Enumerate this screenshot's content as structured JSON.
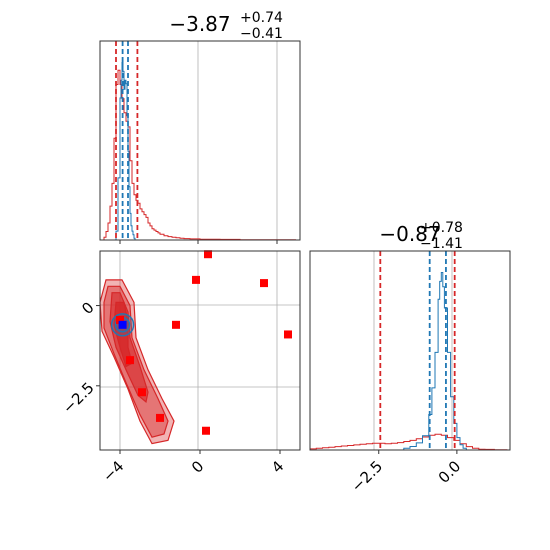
{
  "colors": {
    "red": "#d62728",
    "blue": "#1f77b4",
    "grid": "#b0b0b0",
    "square": "#ff0000",
    "marker": "#0000ff"
  },
  "chart_data": [
    {
      "type": "histogram",
      "title": "−3.87",
      "title_sup": "+0.74",
      "title_sub": "−0.41",
      "xlim": [
        -5,
        5
      ],
      "quantile_lines_red": [
        -4.2,
        -3.13
      ],
      "quantile_lines_blue": [
        -3.87,
        -3.6
      ],
      "series_red_histogram": [
        [
          -5.0,
          0
        ],
        [
          -4.9,
          0
        ],
        [
          -4.8,
          0.01
        ],
        [
          -4.7,
          0.03
        ],
        [
          -4.6,
          0.06
        ],
        [
          -4.5,
          0.12
        ],
        [
          -4.4,
          0.2
        ],
        [
          -4.3,
          0.36
        ],
        [
          -4.2,
          0.55
        ],
        [
          -4.1,
          0.6
        ],
        [
          -4.0,
          0.55
        ],
        [
          -3.9,
          0.5
        ],
        [
          -3.8,
          0.45
        ],
        [
          -3.7,
          0.42
        ],
        [
          -3.6,
          0.4
        ],
        [
          -3.5,
          0.28
        ],
        [
          -3.4,
          0.2
        ],
        [
          -3.3,
          0.16
        ],
        [
          -3.2,
          0.14
        ],
        [
          -3.1,
          0.13
        ],
        [
          -3.0,
          0.11
        ],
        [
          -2.9,
          0.1
        ],
        [
          -2.8,
          0.09
        ],
        [
          -2.7,
          0.08
        ],
        [
          -2.6,
          0.06
        ],
        [
          -2.5,
          0.05
        ],
        [
          -2.4,
          0.04
        ],
        [
          -2.3,
          0.035
        ],
        [
          -2.2,
          0.03
        ],
        [
          -2.1,
          0.025
        ],
        [
          -2.0,
          0.02
        ],
        [
          -1.8,
          0.015
        ],
        [
          -1.6,
          0.012
        ],
        [
          -1.4,
          0.01
        ],
        [
          -1.2,
          0.008
        ],
        [
          -1.0,
          0.006
        ],
        [
          -0.8,
          0.005
        ],
        [
          -0.5,
          0.004
        ],
        [
          0,
          0.003
        ],
        [
          1,
          0.002
        ],
        [
          2,
          0.001
        ],
        [
          4.8,
          0.001
        ]
      ],
      "series_blue_histogram": [
        [
          -4.3,
          0
        ],
        [
          -4.2,
          0.05
        ],
        [
          -4.1,
          0.35
        ],
        [
          -4.0,
          0.8
        ],
        [
          -3.95,
          0.9
        ],
        [
          -3.9,
          1.0
        ],
        [
          -3.85,
          0.95
        ],
        [
          -3.8,
          0.85
        ],
        [
          -3.75,
          0.9
        ],
        [
          -3.7,
          0.88
        ],
        [
          -3.65,
          0.7
        ],
        [
          -3.6,
          0.5
        ],
        [
          -3.55,
          0.3
        ],
        [
          -3.5,
          0.15
        ],
        [
          -3.45,
          0.08
        ],
        [
          -3.4,
          0.05
        ],
        [
          -3.35,
          0.03
        ],
        [
          -3.3,
          0.01
        ],
        [
          -3.25,
          0
        ]
      ]
    },
    {
      "type": "scatter",
      "xlim": [
        -5,
        5
      ],
      "ylim": [
        -4.5,
        1.7
      ],
      "xticks": [
        -4,
        0,
        4
      ],
      "xtick_labels": [
        "−4",
        "0",
        "4"
      ],
      "yticks": [
        0,
        -2.5
      ],
      "ytick_labels": [
        "0",
        "−2.5"
      ],
      "red_squares": [
        [
          0.4,
          1.6
        ],
        [
          -0.2,
          0.8
        ],
        [
          3.2,
          0.7
        ],
        [
          -1.2,
          -0.6
        ],
        [
          4.4,
          -0.9
        ],
        [
          -3.5,
          -1.7
        ],
        [
          -2.9,
          -2.7
        ],
        [
          -2.0,
          -3.5
        ],
        [
          0.3,
          -3.9
        ],
        [
          -4.0,
          -0.45
        ]
      ],
      "blue_marker": [
        -3.87,
        -0.6
      ],
      "red_contours": [
        [
          [
            -4.7,
            0.8
          ],
          [
            -3.9,
            0.8
          ],
          [
            -3.3,
            0.1
          ],
          [
            -3.2,
            -1.0
          ],
          [
            -2.6,
            -2.0
          ],
          [
            -1.9,
            -2.9
          ],
          [
            -1.3,
            -3.6
          ],
          [
            -1.6,
            -4.2
          ],
          [
            -2.4,
            -4.3
          ],
          [
            -3.0,
            -3.6
          ],
          [
            -3.6,
            -2.6
          ],
          [
            -4.3,
            -1.6
          ],
          [
            -4.9,
            -0.8
          ],
          [
            -5.0,
            0.1
          ]
        ],
        [
          [
            -4.6,
            0.6
          ],
          [
            -4.0,
            0.6
          ],
          [
            -3.5,
            0.0
          ],
          [
            -3.4,
            -1.0
          ],
          [
            -2.8,
            -2.0
          ],
          [
            -2.1,
            -2.9
          ],
          [
            -1.6,
            -3.6
          ],
          [
            -1.8,
            -4.0
          ],
          [
            -2.4,
            -4.1
          ],
          [
            -3.0,
            -3.4
          ],
          [
            -3.7,
            -2.4
          ],
          [
            -4.3,
            -1.5
          ],
          [
            -4.8,
            -0.7
          ],
          [
            -4.8,
            0.1
          ]
        ],
        [
          [
            -4.4,
            0.4
          ],
          [
            -4.0,
            0.4
          ],
          [
            -3.6,
            -0.2
          ],
          [
            -3.5,
            -1.0
          ],
          [
            -3.0,
            -1.9
          ],
          [
            -2.6,
            -2.7
          ],
          [
            -2.7,
            -3.0
          ],
          [
            -3.1,
            -2.8
          ],
          [
            -3.7,
            -2.0
          ],
          [
            -4.2,
            -1.3
          ],
          [
            -4.5,
            -0.5
          ]
        ],
        [
          [
            -4.2,
            0.1
          ],
          [
            -3.8,
            0.1
          ],
          [
            -3.6,
            -0.5
          ],
          [
            -3.6,
            -1.3
          ],
          [
            -3.4,
            -1.8
          ],
          [
            -3.7,
            -1.9
          ],
          [
            -4.0,
            -1.3
          ],
          [
            -4.3,
            -0.6
          ]
        ]
      ],
      "blue_contours": [
        {
          "center": [
            -3.87,
            -0.6
          ],
          "rx": 0.55,
          "ry": 0.55
        },
        {
          "center": [
            -3.87,
            -0.6
          ],
          "rx": 0.35,
          "ry": 0.35
        }
      ]
    },
    {
      "type": "histogram",
      "title": "−0.87",
      "title_sup": "+0.78",
      "title_sub": "−1.41",
      "xlim": [
        -4.7,
        1.7
      ],
      "xticks": [
        -2.5,
        0.0
      ],
      "xtick_labels": [
        "−2.5",
        "0.0"
      ],
      "quantile_lines_red": [
        -2.45,
        -0.07
      ],
      "quantile_lines_blue": [
        -0.87,
        -0.35
      ],
      "series_red_histogram": [
        [
          -4.7,
          0.02
        ],
        [
          -4.5,
          0.03
        ],
        [
          -4.3,
          0.04
        ],
        [
          -4.1,
          0.05
        ],
        [
          -3.9,
          0.06
        ],
        [
          -3.7,
          0.07
        ],
        [
          -3.5,
          0.08
        ],
        [
          -3.3,
          0.09
        ],
        [
          -3.1,
          0.1
        ],
        [
          -2.9,
          0.11
        ],
        [
          -2.7,
          0.12
        ],
        [
          -2.5,
          0.12
        ],
        [
          -2.3,
          0.11
        ],
        [
          -2.1,
          0.12
        ],
        [
          -1.9,
          0.13
        ],
        [
          -1.7,
          0.15
        ],
        [
          -1.5,
          0.17
        ],
        [
          -1.3,
          0.2
        ],
        [
          -1.1,
          0.23
        ],
        [
          -0.9,
          0.26
        ],
        [
          -0.7,
          0.28
        ],
        [
          -0.5,
          0.26
        ],
        [
          -0.3,
          0.22
        ],
        [
          -0.1,
          0.17
        ],
        [
          0.1,
          0.11
        ],
        [
          0.3,
          0.06
        ],
        [
          0.5,
          0.03
        ],
        [
          0.7,
          0.015
        ],
        [
          0.9,
          0.01
        ],
        [
          1.2,
          0.005
        ],
        [
          1.6,
          0
        ]
      ],
      "series_blue_histogram": [
        [
          -1.9,
          0
        ],
        [
          -1.7,
          0.01
        ],
        [
          -1.5,
          0.02
        ],
        [
          -1.3,
          0.04
        ],
        [
          -1.1,
          0.08
        ],
        [
          -0.9,
          0.2
        ],
        [
          -0.8,
          0.35
        ],
        [
          -0.7,
          0.55
        ],
        [
          -0.6,
          0.85
        ],
        [
          -0.55,
          0.95
        ],
        [
          -0.5,
          1.0
        ],
        [
          -0.45,
          0.92
        ],
        [
          -0.4,
          0.8
        ],
        [
          -0.3,
          0.55
        ],
        [
          -0.2,
          0.3
        ],
        [
          -0.1,
          0.15
        ],
        [
          0.0,
          0.07
        ],
        [
          0.1,
          0.03
        ],
        [
          0.2,
          0.01
        ],
        [
          0.3,
          0
        ]
      ]
    }
  ]
}
